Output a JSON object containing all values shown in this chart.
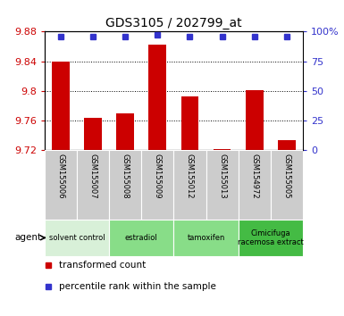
{
  "title": "GDS3105 / 202799_at",
  "samples": [
    "GSM155006",
    "GSM155007",
    "GSM155008",
    "GSM155009",
    "GSM155012",
    "GSM155013",
    "GSM154972",
    "GSM155005"
  ],
  "bar_values": [
    9.839,
    9.764,
    9.77,
    9.862,
    9.793,
    9.721,
    9.801,
    9.733
  ],
  "percentile_values": [
    96,
    96,
    96,
    97,
    96,
    96,
    96,
    96
  ],
  "ylim_left": [
    9.72,
    9.88
  ],
  "ylim_right": [
    0,
    100
  ],
  "yticks_left": [
    9.72,
    9.76,
    9.8,
    9.84,
    9.88
  ],
  "yticks_right": [
    0,
    25,
    50,
    75,
    100
  ],
  "bar_color": "#cc0000",
  "percentile_color": "#3333cc",
  "grid_color": "#000000",
  "groups": [
    {
      "label": "solvent control",
      "samples": 2,
      "color": "#d8f0d8"
    },
    {
      "label": "estradiol",
      "samples": 2,
      "color": "#88dd88"
    },
    {
      "label": "tamoxifen",
      "samples": 2,
      "color": "#88dd88"
    },
    {
      "label": "Cimicifuga\nracemosa extract",
      "samples": 2,
      "color": "#44bb44"
    }
  ],
  "tick_color_left": "#cc0000",
  "tick_color_right": "#3333cc",
  "agent_label": "agent",
  "sample_box_color": "#cccccc",
  "legend_items": [
    {
      "label": "transformed count",
      "color": "#cc0000"
    },
    {
      "label": "percentile rank within the sample",
      "color": "#3333cc"
    }
  ],
  "bg_color": "#ffffff"
}
